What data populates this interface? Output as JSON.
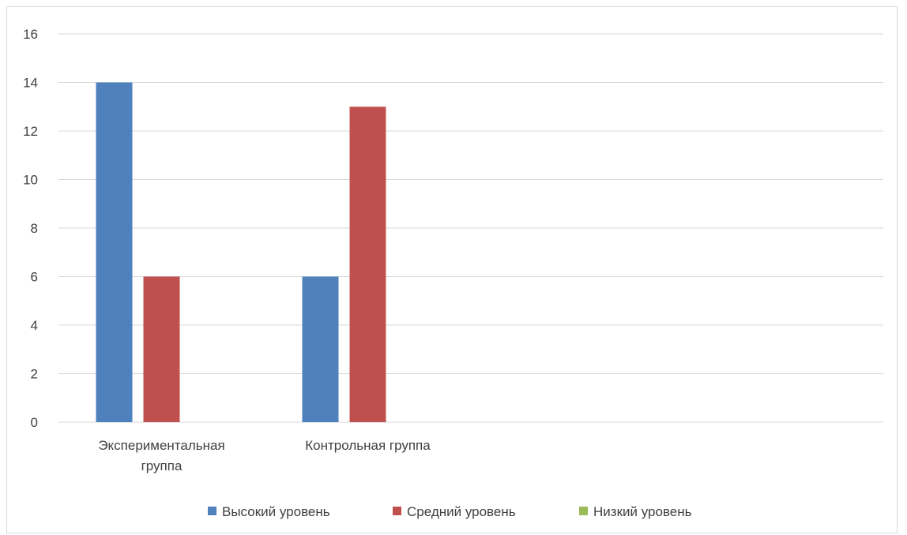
{
  "chart_data": {
    "type": "bar",
    "title": "",
    "xlabel": "",
    "ylabel": "",
    "ylim": [
      0,
      16
    ],
    "yticks": [
      0,
      2,
      4,
      6,
      8,
      10,
      12,
      14,
      16
    ],
    "grid": true,
    "legend_position": "bottom",
    "categories": [
      [
        "Экспериментальная",
        "группа"
      ],
      [
        "Контрольная группа"
      ],
      [
        ""
      ],
      [
        ""
      ]
    ],
    "series": [
      {
        "name": "Высокий уровень",
        "color": "#4f81bd",
        "values": [
          14,
          6,
          null,
          null
        ]
      },
      {
        "name": "Средний уровень",
        "color": "#c0504d",
        "values": [
          6,
          13,
          null,
          null
        ]
      },
      {
        "name": "Низкий уровень",
        "color": "#9bbb59",
        "values": [
          null,
          null,
          null,
          null
        ]
      }
    ]
  }
}
